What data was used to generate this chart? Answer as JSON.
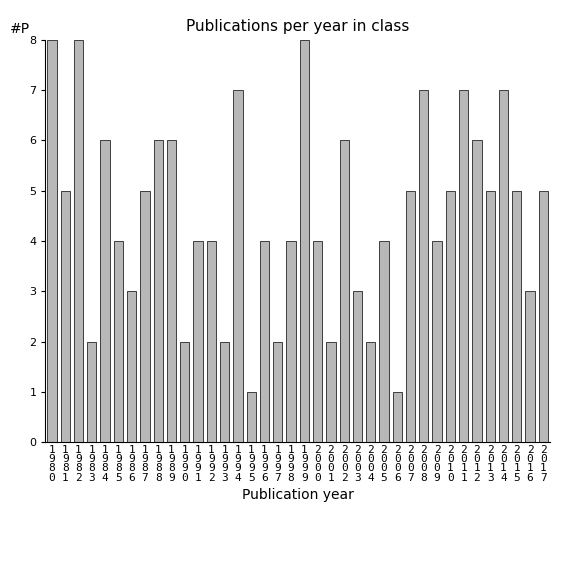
{
  "title": "Publications per year in class",
  "xlabel": "Publication year",
  "ylabel": "#P",
  "years": [
    1980,
    1981,
    1982,
    1983,
    1984,
    1985,
    1986,
    1987,
    1988,
    1989,
    1990,
    1991,
    1992,
    1993,
    1994,
    1995,
    1996,
    1997,
    1998,
    1999,
    2000,
    2001,
    2002,
    2003,
    2004,
    2005,
    2006,
    2007,
    2008,
    2009,
    2010,
    2011,
    2012,
    2013,
    2014,
    2015,
    2016,
    2017
  ],
  "values": [
    8,
    5,
    8,
    2,
    6,
    4,
    3,
    5,
    6,
    6,
    2,
    4,
    4,
    2,
    7,
    1,
    4,
    2,
    4,
    8,
    4,
    2,
    6,
    3,
    2,
    4,
    1,
    5,
    7,
    4,
    5,
    7,
    6,
    5,
    7,
    5,
    3,
    5
  ],
  "bar_color": "#b8b8b8",
  "bar_edge_color": "#000000",
  "ylim": [
    0,
    8
  ],
  "yticks": [
    0,
    1,
    2,
    3,
    4,
    5,
    6,
    7,
    8
  ],
  "title_fontsize": 11,
  "label_fontsize": 10,
  "tick_fontsize": 8,
  "figsize": [
    5.67,
    5.67
  ],
  "dpi": 100
}
